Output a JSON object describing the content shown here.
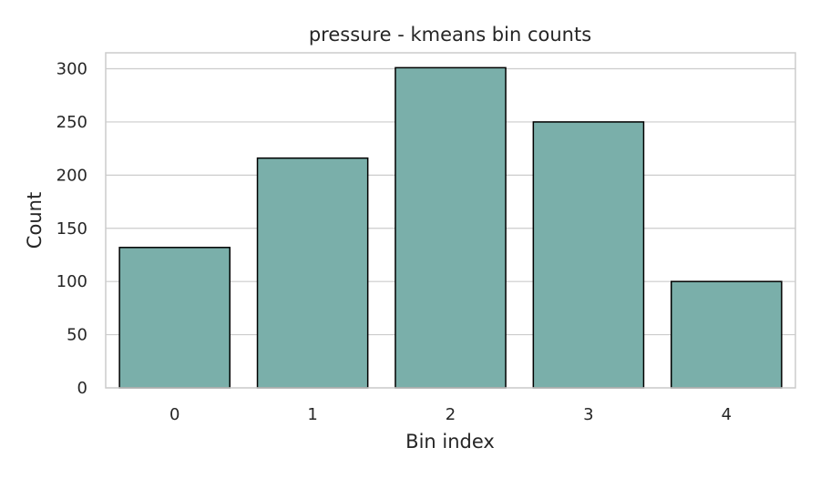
{
  "chart_data": {
    "type": "bar",
    "title": "pressure - kmeans bin counts",
    "xlabel": "Bin index",
    "ylabel": "Count",
    "categories": [
      "0",
      "1",
      "2",
      "3",
      "4"
    ],
    "values": [
      132,
      216,
      301,
      250,
      100
    ],
    "ylim": [
      0,
      315
    ],
    "yticks": [
      0,
      50,
      100,
      150,
      200,
      250,
      300
    ],
    "bar_color": "#7aafaa",
    "edge_color": "#000000",
    "grid": "horizontal",
    "legend": "none"
  }
}
